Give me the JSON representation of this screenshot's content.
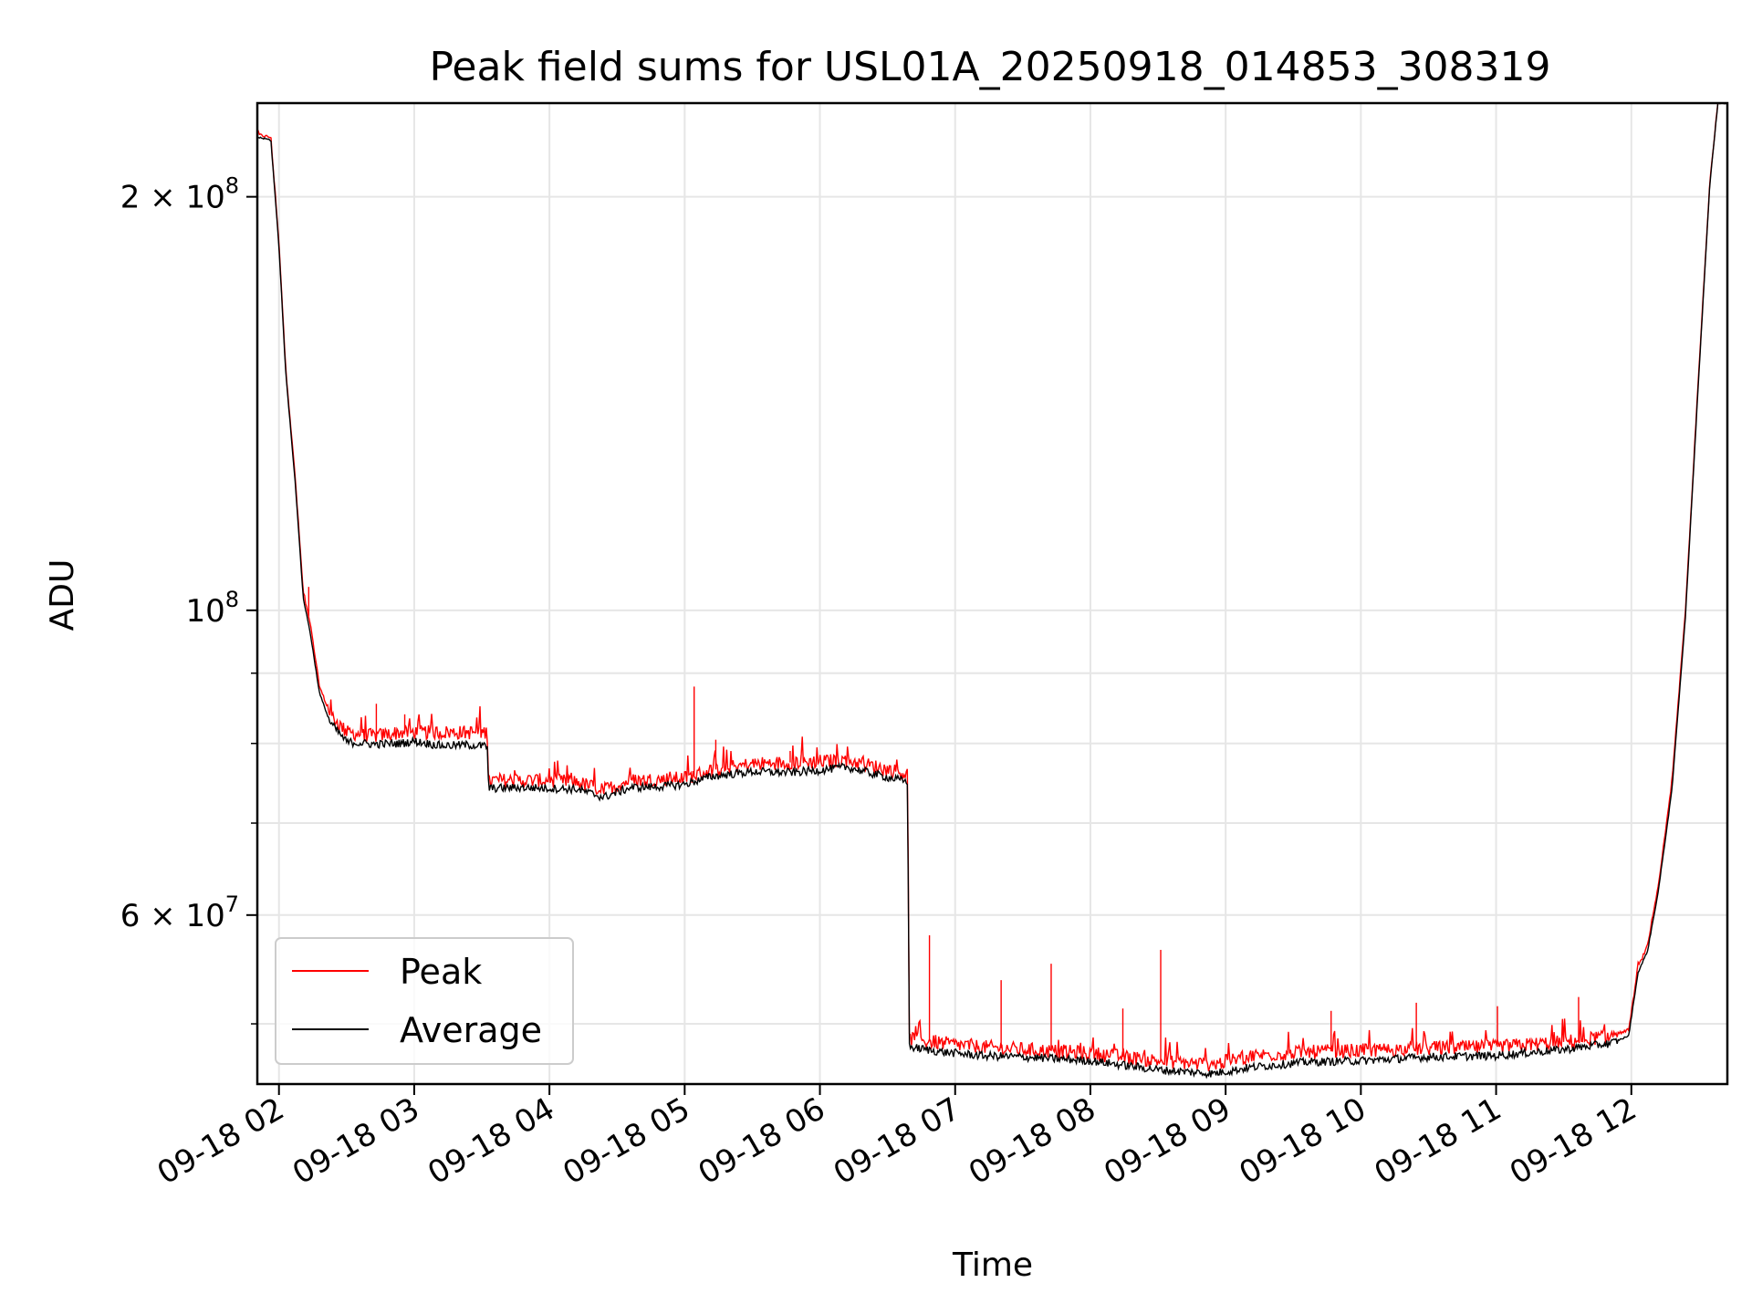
{
  "chart_data": {
    "type": "line",
    "title": "Peak field sums for USL01A_20250918_014853_308319",
    "xlabel": "Time",
    "ylabel": "ADU",
    "yscale": "log",
    "grid": true,
    "legend_position": "lower-left",
    "x_unit": "hours since 09-18 00:00",
    "xlim": [
      1.84,
      12.71
    ],
    "ylim": [
      45200000,
      234000000
    ],
    "x_ticks": [
      {
        "value": 2,
        "label": "09-18 02"
      },
      {
        "value": 3,
        "label": "09-18 03"
      },
      {
        "value": 4,
        "label": "09-18 04"
      },
      {
        "value": 5,
        "label": "09-18 05"
      },
      {
        "value": 6,
        "label": "09-18 06"
      },
      {
        "value": 7,
        "label": "09-18 07"
      },
      {
        "value": 8,
        "label": "09-18 08"
      },
      {
        "value": 9,
        "label": "09-18 09"
      },
      {
        "value": 10,
        "label": "09-18 10"
      },
      {
        "value": 11,
        "label": "09-18 11"
      },
      {
        "value": 12,
        "label": "09-18 12"
      }
    ],
    "y_major_ticks": [
      {
        "value": 200000000,
        "base": "2 × 10",
        "exp": "8"
      },
      {
        "value": 100000000,
        "base": "10",
        "exp": "8"
      },
      {
        "value": 60000000,
        "base": "6 × 10",
        "exp": "7"
      }
    ],
    "y_minor_ticks": [
      50000000,
      70000000,
      80000000,
      90000000
    ],
    "series": [
      {
        "name": "Peak",
        "color": "#ff0000",
        "points": [
          [
            1.84,
            222000000
          ],
          [
            1.94,
            221000000
          ],
          [
            2.0,
            185000000
          ],
          [
            2.05,
            150000000
          ],
          [
            2.12,
            125000000
          ],
          [
            2.18,
            103000000
          ],
          [
            2.23,
            98000000
          ],
          [
            2.3,
            88000000
          ],
          [
            2.38,
            84000000
          ],
          [
            2.5,
            81500000
          ],
          [
            2.7,
            81000000
          ],
          [
            2.9,
            81500000
          ],
          [
            3.0,
            81500000
          ],
          [
            3.2,
            81500000
          ],
          [
            3.4,
            81500000
          ],
          [
            3.54,
            81500000
          ],
          [
            3.55,
            75200000
          ],
          [
            3.8,
            75200000
          ],
          [
            4.0,
            75200000
          ],
          [
            4.2,
            75000000
          ],
          [
            4.4,
            74000000
          ],
          [
            4.6,
            75200000
          ],
          [
            4.8,
            75300000
          ],
          [
            5.0,
            75500000
          ],
          [
            5.2,
            76500000
          ],
          [
            5.5,
            77300000
          ],
          [
            5.8,
            77500000
          ],
          [
            6.0,
            77600000
          ],
          [
            6.2,
            77800000
          ],
          [
            6.4,
            77000000
          ],
          [
            6.65,
            76000000
          ],
          [
            6.66,
            48800000
          ],
          [
            6.9,
            48400000
          ],
          [
            7.2,
            48100000
          ],
          [
            7.5,
            47900000
          ],
          [
            8.0,
            47600000
          ],
          [
            8.5,
            47000000
          ],
          [
            8.9,
            46700000
          ],
          [
            9.2,
            47400000
          ],
          [
            9.6,
            47700000
          ],
          [
            10.0,
            47800000
          ],
          [
            10.5,
            48000000
          ],
          [
            11.0,
            48100000
          ],
          [
            11.5,
            48500000
          ],
          [
            11.85,
            49000000
          ],
          [
            11.98,
            49500000
          ],
          [
            12.05,
            55000000
          ],
          [
            12.12,
            57000000
          ],
          [
            12.2,
            63000000
          ],
          [
            12.3,
            75000000
          ],
          [
            12.4,
            100000000
          ],
          [
            12.5,
            150000000
          ],
          [
            12.58,
            205000000
          ],
          [
            12.64,
            234000000
          ],
          [
            12.71,
            234000000
          ]
        ],
        "spikes": [
          [
            2.22,
            104000000
          ],
          [
            2.72,
            85500000
          ],
          [
            2.93,
            84000000
          ],
          [
            5.07,
            88000000
          ],
          [
            5.23,
            80500000
          ],
          [
            5.78,
            79000000
          ],
          [
            6.81,
            58000000
          ],
          [
            7.34,
            53800000
          ],
          [
            7.71,
            55300000
          ],
          [
            8.52,
            56600000
          ],
          [
            8.24,
            51300000
          ],
          [
            10.41,
            51800000
          ],
          [
            11.01,
            51500000
          ],
          [
            9.78,
            51100000
          ],
          [
            11.61,
            52300000
          ]
        ]
      },
      {
        "name": "Average",
        "color": "#000000",
        "points": [
          [
            1.84,
            221000000
          ],
          [
            1.94,
            220000000
          ],
          [
            2.0,
            184000000
          ],
          [
            2.05,
            149000000
          ],
          [
            2.12,
            124000000
          ],
          [
            2.18,
            102000000
          ],
          [
            2.23,
            96500000
          ],
          [
            2.3,
            87000000
          ],
          [
            2.38,
            82800000
          ],
          [
            2.5,
            80200000
          ],
          [
            2.7,
            79900000
          ],
          [
            2.9,
            80000000
          ],
          [
            3.0,
            80300000
          ],
          [
            3.2,
            79700000
          ],
          [
            3.4,
            79800000
          ],
          [
            3.54,
            79600000
          ],
          [
            3.55,
            74200000
          ],
          [
            3.8,
            74300000
          ],
          [
            4.0,
            74200000
          ],
          [
            4.2,
            74100000
          ],
          [
            4.4,
            73100000
          ],
          [
            4.6,
            74300000
          ],
          [
            4.8,
            74400000
          ],
          [
            5.0,
            74700000
          ],
          [
            5.2,
            75700000
          ],
          [
            5.5,
            76300000
          ],
          [
            5.8,
            76200000
          ],
          [
            6.0,
            76500000
          ],
          [
            6.2,
            76900000
          ],
          [
            6.4,
            76000000
          ],
          [
            6.65,
            75000000
          ],
          [
            6.66,
            48100000
          ],
          [
            6.9,
            47700000
          ],
          [
            7.2,
            47400000
          ],
          [
            7.5,
            47300000
          ],
          [
            8.0,
            47000000
          ],
          [
            8.5,
            46300000
          ],
          [
            8.9,
            46000000
          ],
          [
            9.2,
            46500000
          ],
          [
            9.6,
            46900000
          ],
          [
            10.0,
            47000000
          ],
          [
            10.5,
            47300000
          ],
          [
            11.0,
            47400000
          ],
          [
            11.5,
            47900000
          ],
          [
            11.85,
            48400000
          ],
          [
            11.98,
            49000000
          ],
          [
            12.05,
            54500000
          ],
          [
            12.12,
            56500000
          ],
          [
            12.2,
            62500000
          ],
          [
            12.3,
            74000000
          ],
          [
            12.4,
            99000000
          ],
          [
            12.5,
            149000000
          ],
          [
            12.58,
            204000000
          ],
          [
            12.64,
            234000000
          ],
          [
            12.71,
            234000000
          ]
        ]
      }
    ]
  }
}
